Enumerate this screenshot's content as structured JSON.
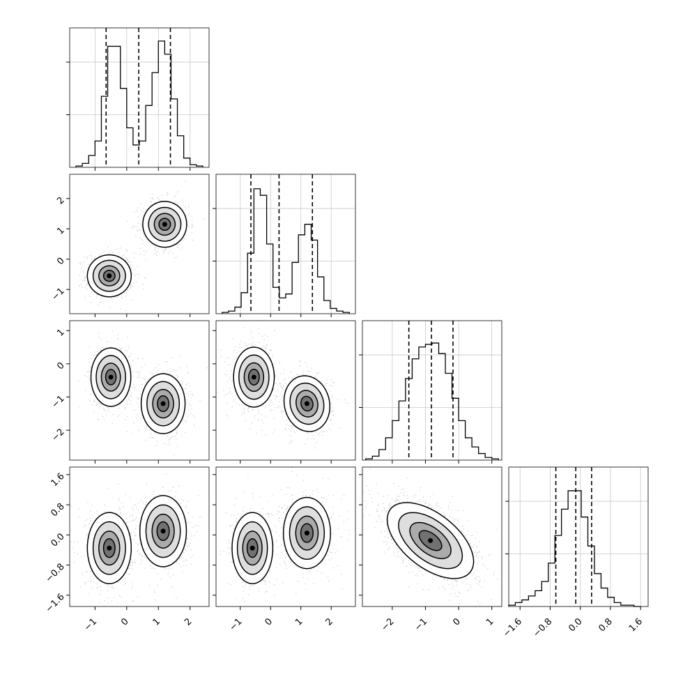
{
  "chart_data": {
    "type": "corner",
    "parameters": 4,
    "axis_ranges": [
      [
        -1.8,
        2.6
      ],
      [
        -1.8,
        2.8
      ],
      [
        -2.9,
        1.3
      ],
      [
        -1.9,
        1.8
      ]
    ],
    "x_tick_labels": [
      {
        "values": [
          -1,
          0,
          1,
          2
        ],
        "labels": [
          "−1",
          "0",
          "1",
          "2"
        ]
      },
      {
        "values": [
          -1,
          0,
          1,
          2
        ],
        "labels": [
          "−1",
          "0",
          "1",
          "2"
        ]
      },
      {
        "values": [
          -2,
          -1,
          0,
          1
        ],
        "labels": [
          "−2",
          "−1",
          "0",
          "1"
        ]
      },
      {
        "values": [
          -1.6,
          -0.8,
          0.0,
          0.8,
          1.6
        ],
        "labels": [
          "−1.6",
          "−0.8",
          "0.0",
          "0.8",
          "1.6"
        ]
      }
    ],
    "y_tick_labels": [
      null,
      {
        "values": [
          -1,
          0,
          1,
          2
        ],
        "labels": [
          "−1",
          "0",
          "1",
          "2"
        ]
      },
      {
        "values": [
          -2,
          -1,
          0,
          1
        ],
        "labels": [
          "−2",
          "−1",
          "0",
          "1"
        ]
      },
      {
        "values": [
          -1.6,
          -0.8,
          0.0,
          0.8,
          1.6
        ],
        "labels": [
          "−1.6",
          "−0.8",
          "0.0",
          "0.8",
          "1.6"
        ]
      }
    ],
    "quantiles": [
      [
        -0.65,
        0.38,
        1.38
      ],
      [
        -0.65,
        0.28,
        1.38
      ],
      [
        -1.5,
        -0.82,
        -0.17
      ],
      [
        -0.65,
        -0.12,
        0.3
      ]
    ],
    "histograms": [
      {
        "edges": [
          -1.6,
          2.4
        ],
        "counts": [
          0.01,
          0.03,
          0.09,
          0.2,
          0.54,
          0.92,
          0.92,
          0.6,
          0.3,
          0.17,
          0.2,
          0.47,
          0.72,
          0.96,
          0.86,
          0.52,
          0.24,
          0.07,
          0.02,
          0.01
        ]
      },
      {
        "edges": [
          -1.6,
          2.6
        ],
        "counts": [
          0.01,
          0.02,
          0.05,
          0.16,
          0.46,
          0.95,
          0.9,
          0.53,
          0.2,
          0.12,
          0.15,
          0.39,
          0.6,
          0.68,
          0.56,
          0.28,
          0.1,
          0.04,
          0.02,
          0.01
        ]
      },
      {
        "edges": [
          -2.8,
          1.2
        ],
        "counts": [
          0.01,
          0.03,
          0.08,
          0.17,
          0.3,
          0.45,
          0.62,
          0.77,
          0.86,
          0.88,
          0.89,
          0.81,
          0.66,
          0.47,
          0.3,
          0.17,
          0.1,
          0.05,
          0.02,
          0.01
        ]
      },
      {
        "edges": [
          -1.9,
          1.6
        ],
        "counts": [
          0.01,
          0.03,
          0.05,
          0.08,
          0.12,
          0.19,
          0.33,
          0.54,
          0.74,
          0.88,
          0.88,
          0.68,
          0.46,
          0.25,
          0.14,
          0.07,
          0.03,
          0.01,
          0.01,
          0.0
        ]
      }
    ],
    "histogram_ymax": [
      1.06,
      1.06,
      1.06,
      1.06
    ],
    "histogram_y_gridlines": [
      [
        0.4,
        0.8
      ],
      [
        0.4,
        0.8
      ],
      [
        0.4,
        0.8
      ],
      [
        0.4,
        0.8
      ]
    ],
    "pairs": [
      {
        "row": 1,
        "col": 0,
        "modes": [
          {
            "cx": -0.55,
            "cy": -0.55,
            "sx": 0.33,
            "sy": 0.33,
            "rho": 0.0,
            "w": 0.5
          },
          {
            "cx": 1.2,
            "cy": 1.15,
            "sx": 0.33,
            "sy": 0.36,
            "rho": 0.0,
            "w": 0.5
          }
        ]
      },
      {
        "row": 2,
        "col": 0,
        "modes": [
          {
            "cx": -0.5,
            "cy": -0.4,
            "sx": 0.3,
            "sy": 0.42,
            "rho": 0.0,
            "w": 0.5
          },
          {
            "cx": 1.15,
            "cy": -1.2,
            "sx": 0.33,
            "sy": 0.43,
            "rho": 0.0,
            "w": 0.5
          }
        ]
      },
      {
        "row": 2,
        "col": 1,
        "modes": [
          {
            "cx": -0.55,
            "cy": -0.4,
            "sx": 0.32,
            "sy": 0.43,
            "rho": 0.0,
            "w": 0.5
          },
          {
            "cx": 1.2,
            "cy": -1.2,
            "sx": 0.36,
            "sy": 0.4,
            "rho": -0.1,
            "w": 0.5
          }
        ]
      },
      {
        "row": 3,
        "col": 0,
        "modes": [
          {
            "cx": -0.55,
            "cy": -0.35,
            "sx": 0.33,
            "sy": 0.45,
            "rho": 0.0,
            "w": 0.5
          },
          {
            "cx": 1.15,
            "cy": 0.1,
            "sx": 0.35,
            "sy": 0.45,
            "rho": 0.0,
            "w": 0.5
          }
        ]
      },
      {
        "row": 3,
        "col": 1,
        "modes": [
          {
            "cx": -0.6,
            "cy": -0.35,
            "sx": 0.32,
            "sy": 0.45,
            "rho": 0.0,
            "w": 0.5
          },
          {
            "cx": 1.2,
            "cy": 0.05,
            "sx": 0.37,
            "sy": 0.45,
            "rho": 0.0,
            "w": 0.5
          }
        ]
      },
      {
        "row": 3,
        "col": 2,
        "modes": [
          {
            "cx": -0.85,
            "cy": -0.15,
            "sx": 0.62,
            "sy": 0.48,
            "rho": -0.55,
            "w": 1.0
          }
        ]
      }
    ],
    "grid": true,
    "quantile_line_style": "dashed"
  }
}
